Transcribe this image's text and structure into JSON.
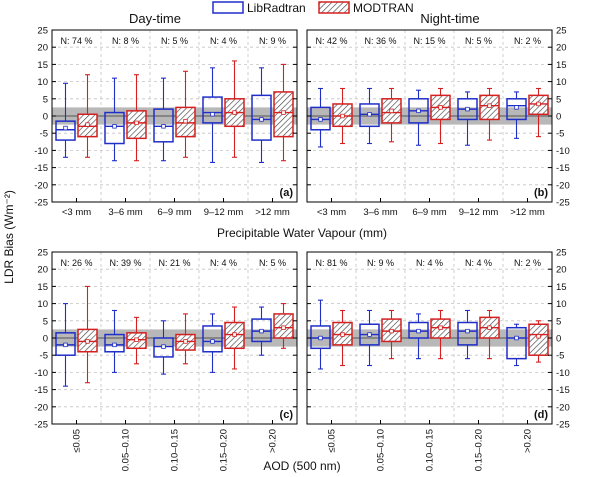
{
  "legend": {
    "libradtran": "LibRadtran",
    "modtran": "MODTRAN",
    "placement": "top-center"
  },
  "colors": {
    "libradtran": "#1f2fc8",
    "modtran": "#d42020",
    "band": "#b8b8b8",
    "grid": "#c4c4c4"
  },
  "labels": {
    "ylabel": "LDR Bias (Wm⁻²)",
    "xlabel_top": "Precipitable Water Vapour (mm)",
    "xlabel_bottom": "AOD (500 nm)",
    "title_day": "Day-time",
    "title_night": "Night-time"
  },
  "chart_data": [
    {
      "type": "box",
      "panel": "(a)",
      "title": "Day-time",
      "xlabel": "Precipitable Water Vapour (mm)",
      "ylabel": "LDR Bias (Wm⁻²)",
      "ylim": [
        -25,
        25
      ],
      "yticks": [
        -25,
        -20,
        -15,
        -10,
        -5,
        0,
        5,
        10,
        15,
        20,
        25
      ],
      "shaded_band": [
        -2.5,
        2.5
      ],
      "categories": [
        "<3 mm",
        "3–6 mm",
        "6–9 mm",
        "9–12 mm",
        ">12 mm"
      ],
      "percentages": [
        "N: 74 %",
        "N: 8 %",
        "N: 5 %",
        "N: 4 %",
        "N: 9 %"
      ],
      "series": [
        {
          "name": "LibRadtran",
          "boxes": [
            {
              "whislo": -12,
              "q1": -7,
              "med": -4,
              "mean": -3.5,
              "q3": -1.5,
              "whishi": 9.5
            },
            {
              "whislo": -13,
              "q1": -8,
              "med": -3,
              "mean": -3,
              "q3": 1,
              "whishi": 11
            },
            {
              "whislo": -13,
              "q1": -7.5,
              "med": -3,
              "mean": -3,
              "q3": 2,
              "whishi": 11
            },
            {
              "whislo": -13.5,
              "q1": -2,
              "med": 1,
              "mean": 0.5,
              "q3": 5.5,
              "whishi": 14
            },
            {
              "whislo": -13.5,
              "q1": -7,
              "med": -1,
              "mean": -1,
              "q3": 6,
              "whishi": 14
            }
          ]
        },
        {
          "name": "MODTRAN",
          "boxes": [
            {
              "whislo": -12,
              "q1": -6,
              "med": -3,
              "mean": -2.5,
              "q3": 0.5,
              "whishi": 12
            },
            {
              "whislo": -13,
              "q1": -6.5,
              "med": -2,
              "mean": -2,
              "q3": 1.5,
              "whishi": 12
            },
            {
              "whislo": -12,
              "q1": -6,
              "med": -2,
              "mean": -1.5,
              "q3": 2.5,
              "whishi": 13
            },
            {
              "whislo": -12,
              "q1": -3,
              "med": 1,
              "mean": 1,
              "q3": 5,
              "whishi": 16
            },
            {
              "whislo": -13,
              "q1": -6,
              "med": 1,
              "mean": 1,
              "q3": 7,
              "whishi": 15
            }
          ]
        }
      ]
    },
    {
      "type": "box",
      "panel": "(b)",
      "title": "Night-time",
      "xlabel": "Precipitable Water Vapour (mm)",
      "ylim": [
        -25,
        25
      ],
      "yticks": [
        -25,
        -20,
        -15,
        -10,
        -5,
        0,
        5,
        10,
        15,
        20,
        25
      ],
      "shaded_band": [
        -2.5,
        2.5
      ],
      "categories": [
        "<3 mm",
        "3–6 mm",
        "6–9 mm",
        "9–12 mm",
        ">12 mm"
      ],
      "percentages": [
        "N: 42 %",
        "N: 36 %",
        "N: 15 %",
        "N: 5 %",
        "N: 2 %"
      ],
      "series": [
        {
          "name": "LibRadtran",
          "boxes": [
            {
              "whislo": -9,
              "q1": -4,
              "med": -1,
              "mean": -1,
              "q3": 2.5,
              "whishi": 8
            },
            {
              "whislo": -8,
              "q1": -3,
              "med": 0.5,
              "mean": 0.5,
              "q3": 3.5,
              "whishi": 8
            },
            {
              "whislo": -8.5,
              "q1": -2,
              "med": 1.5,
              "mean": 1.5,
              "q3": 5,
              "whishi": 7.5
            },
            {
              "whislo": -8.5,
              "q1": -1,
              "med": 2,
              "mean": 2,
              "q3": 5,
              "whishi": 7
            },
            {
              "whislo": -6.5,
              "q1": -1,
              "med": 3,
              "mean": 2.5,
              "q3": 5,
              "whishi": 7
            }
          ]
        },
        {
          "name": "MODTRAN",
          "boxes": [
            {
              "whislo": -8,
              "q1": -3,
              "med": 0,
              "mean": 0,
              "q3": 3.5,
              "whishi": 8
            },
            {
              "whislo": -7.5,
              "q1": -2,
              "med": 1,
              "mean": 1.5,
              "q3": 5,
              "whishi": 8
            },
            {
              "whislo": -8,
              "q1": -1,
              "med": 2.5,
              "mean": 2.5,
              "q3": 6,
              "whishi": 8
            },
            {
              "whislo": -7,
              "q1": -1,
              "med": 3,
              "mean": 3,
              "q3": 6,
              "whishi": 8
            },
            {
              "whislo": -6,
              "q1": 0.5,
              "med": 3.5,
              "mean": 3.5,
              "q3": 6,
              "whishi": 8
            }
          ]
        }
      ]
    },
    {
      "type": "box",
      "panel": "(c)",
      "xlabel": "AOD (500 nm)",
      "ylabel": "LDR Bias (Wm⁻²)",
      "ylim": [
        -25,
        25
      ],
      "yticks": [
        -25,
        -20,
        -15,
        -10,
        -5,
        0,
        5,
        10,
        15,
        20,
        25
      ],
      "shaded_band": [
        -2.5,
        2.5
      ],
      "categories": [
        "≤0.05",
        "0.05–0.10",
        "0.10–0.15",
        "0.15–0.20",
        ">0.20"
      ],
      "percentages": [
        "N: 26 %",
        "N: 39 %",
        "N: 21 %",
        "N: 4 %",
        "N: 5 %"
      ],
      "series": [
        {
          "name": "LibRadtran",
          "boxes": [
            {
              "whislo": -14,
              "q1": -5,
              "med": -2,
              "mean": -2,
              "q3": 1.5,
              "whishi": 10
            },
            {
              "whislo": -10,
              "q1": -4,
              "med": -2,
              "mean": -2,
              "q3": 1,
              "whishi": 8
            },
            {
              "whislo": -10.5,
              "q1": -5.5,
              "med": -2.5,
              "mean": -2.5,
              "q3": 0,
              "whishi": 5
            },
            {
              "whislo": -10,
              "q1": -4,
              "med": -1,
              "mean": -1,
              "q3": 3.5,
              "whishi": 7
            },
            {
              "whislo": -5,
              "q1": -1,
              "med": 2,
              "mean": 2,
              "q3": 5.5,
              "whishi": 9
            }
          ]
        },
        {
          "name": "MODTRAN",
          "boxes": [
            {
              "whislo": -13,
              "q1": -4,
              "med": -1,
              "mean": -1,
              "q3": 2.5,
              "whishi": 15
            },
            {
              "whislo": -7.5,
              "q1": -3,
              "med": -0.5,
              "mean": -0.5,
              "q3": 1.5,
              "whishi": 6
            },
            {
              "whislo": -7.5,
              "q1": -3.5,
              "med": -1,
              "mean": -1,
              "q3": 1,
              "whishi": 7
            },
            {
              "whislo": -9,
              "q1": -3,
              "med": 1,
              "mean": 1,
              "q3": 4.5,
              "whishi": 9
            },
            {
              "whislo": -3,
              "q1": 0,
              "med": 3,
              "mean": 3,
              "q3": 7,
              "whishi": 10
            }
          ]
        }
      ]
    },
    {
      "type": "box",
      "panel": "(d)",
      "xlabel": "AOD (500 nm)",
      "ylim": [
        -25,
        25
      ],
      "yticks": [
        -25,
        -20,
        -15,
        -10,
        -5,
        0,
        5,
        10,
        15,
        20,
        25
      ],
      "shaded_band": [
        -2.5,
        2.5
      ],
      "categories": [
        "≤0.05",
        "0.05–0.10",
        "0.10–0.15",
        "0.15–0.20",
        ">0.20"
      ],
      "percentages": [
        "N: 81 %",
        "N: 9 %",
        "N: 4 %",
        "N: 4 %",
        "N: 2 %"
      ],
      "series": [
        {
          "name": "LibRadtran",
          "boxes": [
            {
              "whislo": -9,
              "q1": -3,
              "med": 0,
              "mean": 0,
              "q3": 3.5,
              "whishi": 11
            },
            {
              "whislo": -8,
              "q1": -2,
              "med": 1,
              "mean": 1,
              "q3": 4,
              "whishi": 8
            },
            {
              "whislo": -6,
              "q1": 0,
              "med": 2,
              "mean": 2,
              "q3": 4.5,
              "whishi": 7
            },
            {
              "whislo": -6,
              "q1": -2,
              "med": 2,
              "mean": 2,
              "q3": 4.5,
              "whishi": 8
            },
            {
              "whislo": -8,
              "q1": -6,
              "med": 0,
              "mean": 0,
              "q3": 3,
              "whishi": 4
            }
          ]
        },
        {
          "name": "MODTRAN",
          "boxes": [
            {
              "whislo": -8,
              "q1": -2,
              "med": 1,
              "mean": 1,
              "q3": 4.5,
              "whishi": 8
            },
            {
              "whislo": -6,
              "q1": -1,
              "med": 2,
              "mean": 2,
              "q3": 5.5,
              "whishi": 8
            },
            {
              "whislo": -6,
              "q1": 0,
              "med": 3,
              "mean": 3,
              "q3": 5.5,
              "whishi": 8
            },
            {
              "whislo": -6,
              "q1": 0,
              "med": 3,
              "mean": 3,
              "q3": 6,
              "whishi": 8
            },
            {
              "whislo": -7,
              "q1": -5,
              "med": 1,
              "mean": 0.5,
              "q3": 4,
              "whishi": 5
            }
          ]
        }
      ]
    }
  ]
}
